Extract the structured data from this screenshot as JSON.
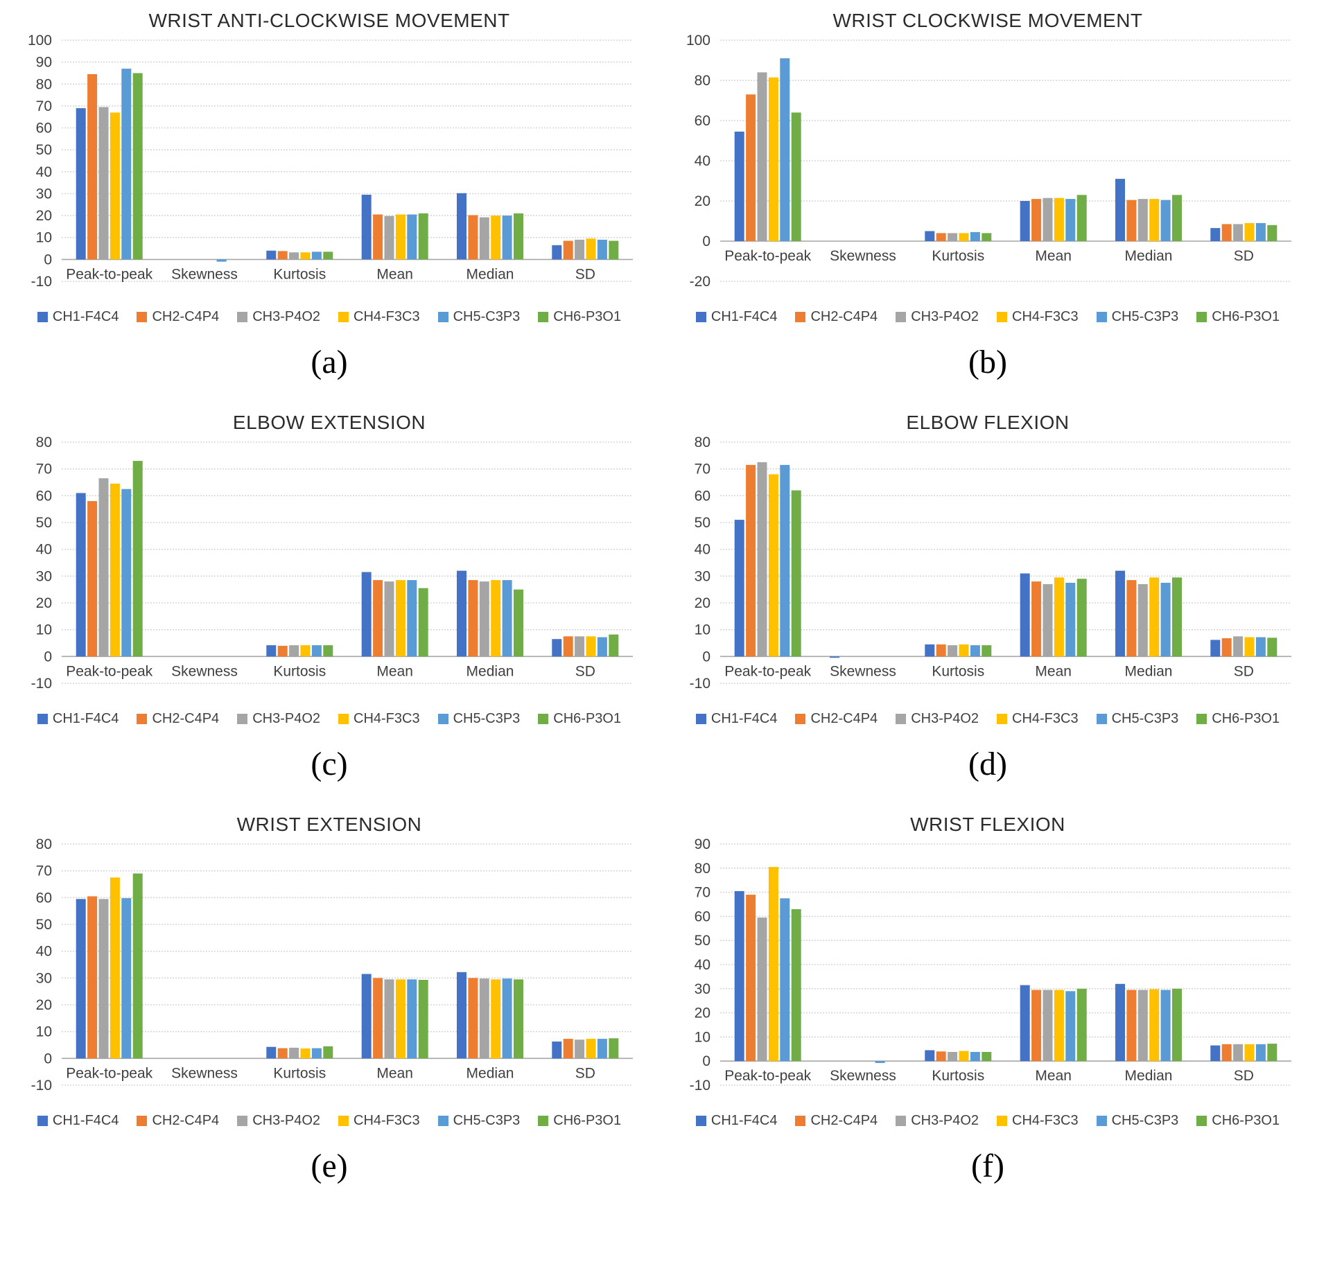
{
  "series_colors": [
    "#4472C4",
    "#ED7D31",
    "#A5A5A5",
    "#FFC000",
    "#5B9BD5",
    "#70AD47"
  ],
  "legend_labels": [
    "CH1-F4C4",
    "CH2-C4P4",
    "CH3-P4O2",
    "CH4-F3C3",
    "CH5-C3P3",
    "CH6-P3O1"
  ],
  "categories": [
    "Peak-to-peak",
    "Skewness",
    "Kurtosis",
    "Mean",
    "Median",
    "SD"
  ],
  "chart_data": [
    {
      "type": "bar",
      "title": "WRIST ANTI-CLOCKWISE MOVEMENT",
      "caption": "(a)",
      "ylim": [
        -10,
        100
      ],
      "ytick_step": 10,
      "grid": true,
      "legend_position": "bottom",
      "categories": [
        "Peak-to-peak",
        "Skewness",
        "Kurtosis",
        "Mean",
        "Median",
        "SD"
      ],
      "series": [
        {
          "name": "CH1-F4C4",
          "values": [
            69,
            0,
            4,
            29.5,
            30.2,
            6.5
          ]
        },
        {
          "name": "CH2-C4P4",
          "values": [
            84.5,
            0,
            3.8,
            20.5,
            20.2,
            8.5
          ]
        },
        {
          "name": "CH3-P4O2",
          "values": [
            69.5,
            0,
            3.2,
            19.8,
            19.2,
            9
          ]
        },
        {
          "name": "CH4-F3C3",
          "values": [
            67,
            0,
            3.2,
            20.5,
            20,
            9.5
          ]
        },
        {
          "name": "CH5-C3P3",
          "values": [
            87,
            -1,
            3.5,
            20.5,
            20,
            9
          ]
        },
        {
          "name": "CH6-P3O1",
          "values": [
            85,
            0,
            3.5,
            21,
            21,
            8.5
          ]
        }
      ]
    },
    {
      "type": "bar",
      "title": "WRIST CLOCKWISE MOVEMENT",
      "caption": "(b)",
      "ylim": [
        -20,
        100
      ],
      "ytick_step": 20,
      "grid": true,
      "legend_position": "bottom",
      "categories": [
        "Peak-to-peak",
        "Skewness",
        "Kurtosis",
        "Mean",
        "Median",
        "SD"
      ],
      "series": [
        {
          "name": "CH1-F4C4",
          "values": [
            54.5,
            0,
            5,
            20,
            31,
            6.5
          ]
        },
        {
          "name": "CH2-C4P4",
          "values": [
            73,
            0,
            4,
            21,
            20.5,
            8.5
          ]
        },
        {
          "name": "CH3-P4O2",
          "values": [
            84,
            0,
            4,
            21.5,
            21,
            8.5
          ]
        },
        {
          "name": "CH4-F3C3",
          "values": [
            81.5,
            0,
            4,
            21.5,
            21,
            9
          ]
        },
        {
          "name": "CH5-C3P3",
          "values": [
            91,
            0,
            4.5,
            21,
            20.5,
            9
          ]
        },
        {
          "name": "CH6-P3O1",
          "values": [
            64,
            0,
            4,
            23,
            23,
            8
          ]
        }
      ]
    },
    {
      "type": "bar",
      "title": "ELBOW EXTENSION",
      "caption": "(c)",
      "ylim": [
        -10,
        80
      ],
      "ytick_step": 10,
      "grid": true,
      "legend_position": "bottom",
      "categories": [
        "Peak-to-peak",
        "Skewness",
        "Kurtosis",
        "Mean",
        "Median",
        "SD"
      ],
      "series": [
        {
          "name": "CH1-F4C4",
          "values": [
            61,
            0,
            4.2,
            31.5,
            32,
            6.5
          ]
        },
        {
          "name": "CH2-C4P4",
          "values": [
            58,
            0,
            4,
            28.5,
            28.5,
            7.5
          ]
        },
        {
          "name": "CH3-P4O2",
          "values": [
            66.5,
            0,
            4.2,
            28,
            28,
            7.5
          ]
        },
        {
          "name": "CH4-F3C3",
          "values": [
            64.5,
            0,
            4.2,
            28.5,
            28.5,
            7.5
          ]
        },
        {
          "name": "CH5-C3P3",
          "values": [
            62.5,
            0,
            4.2,
            28.5,
            28.5,
            7.2
          ]
        },
        {
          "name": "CH6-P3O1",
          "values": [
            73,
            0,
            4.2,
            25.5,
            25,
            8.2
          ]
        }
      ]
    },
    {
      "type": "bar",
      "title": "ELBOW FLEXION",
      "caption": "(d)",
      "ylim": [
        -10,
        80
      ],
      "ytick_step": 10,
      "grid": true,
      "legend_position": "bottom",
      "categories": [
        "Peak-to-peak",
        "Skewness",
        "Kurtosis",
        "Mean",
        "Median",
        "SD"
      ],
      "series": [
        {
          "name": "CH1-F4C4",
          "values": [
            51,
            -0.5,
            4.5,
            31,
            32,
            6.2
          ]
        },
        {
          "name": "CH2-C4P4",
          "values": [
            71.5,
            0,
            4.5,
            28,
            28.5,
            6.8
          ]
        },
        {
          "name": "CH3-P4O2",
          "values": [
            72.5,
            0,
            4.2,
            27,
            27,
            7.5
          ]
        },
        {
          "name": "CH4-F3C3",
          "values": [
            68,
            0,
            4.5,
            29.5,
            29.5,
            7.2
          ]
        },
        {
          "name": "CH5-C3P3",
          "values": [
            71.5,
            0,
            4.2,
            27.5,
            27.5,
            7.2
          ]
        },
        {
          "name": "CH6-P3O1",
          "values": [
            62,
            0,
            4.2,
            29,
            29.5,
            7
          ]
        }
      ]
    },
    {
      "type": "bar",
      "title": "WRIST EXTENSION",
      "caption": "(e)",
      "ylim": [
        -10,
        80
      ],
      "ytick_step": 10,
      "grid": true,
      "legend_position": "bottom",
      "categories": [
        "Peak-to-peak",
        "Skewness",
        "Kurtosis",
        "Mean",
        "Median",
        "SD"
      ],
      "series": [
        {
          "name": "CH1-F4C4",
          "values": [
            59.5,
            0,
            4.3,
            31.5,
            32.2,
            6.3
          ]
        },
        {
          "name": "CH2-C4P4",
          "values": [
            60.5,
            0,
            3.8,
            30,
            30,
            7.3
          ]
        },
        {
          "name": "CH3-P4O2",
          "values": [
            59.5,
            0,
            4,
            29.5,
            29.8,
            7
          ]
        },
        {
          "name": "CH4-F3C3",
          "values": [
            67.5,
            0,
            3.7,
            29.5,
            29.5,
            7.3
          ]
        },
        {
          "name": "CH5-C3P3",
          "values": [
            59.8,
            0,
            3.8,
            29.5,
            29.8,
            7.3
          ]
        },
        {
          "name": "CH6-P3O1",
          "values": [
            69,
            0,
            4.5,
            29.3,
            29.5,
            7.5
          ]
        }
      ]
    },
    {
      "type": "bar",
      "title": "WRIST FLEXION",
      "caption": "(f)",
      "ylim": [
        -10,
        90
      ],
      "ytick_step": 10,
      "grid": true,
      "legend_position": "bottom",
      "categories": [
        "Peak-to-peak",
        "Skewness",
        "Kurtosis",
        "Mean",
        "Median",
        "SD"
      ],
      "series": [
        {
          "name": "CH1-F4C4",
          "values": [
            70.5,
            0,
            4.5,
            31.5,
            32,
            6.5
          ]
        },
        {
          "name": "CH2-C4P4",
          "values": [
            69,
            0,
            4,
            29.5,
            29.5,
            7
          ]
        },
        {
          "name": "CH3-P4O2",
          "values": [
            59.5,
            0,
            3.8,
            29.5,
            29.5,
            7
          ]
        },
        {
          "name": "CH4-F3C3",
          "values": [
            80.5,
            0,
            4.2,
            29.5,
            29.8,
            7
          ]
        },
        {
          "name": "CH5-C3P3",
          "values": [
            67.5,
            -0.8,
            3.8,
            29,
            29.5,
            7
          ]
        },
        {
          "name": "CH6-P3O1",
          "values": [
            63,
            0,
            3.8,
            30,
            30,
            7.2
          ]
        }
      ]
    }
  ]
}
